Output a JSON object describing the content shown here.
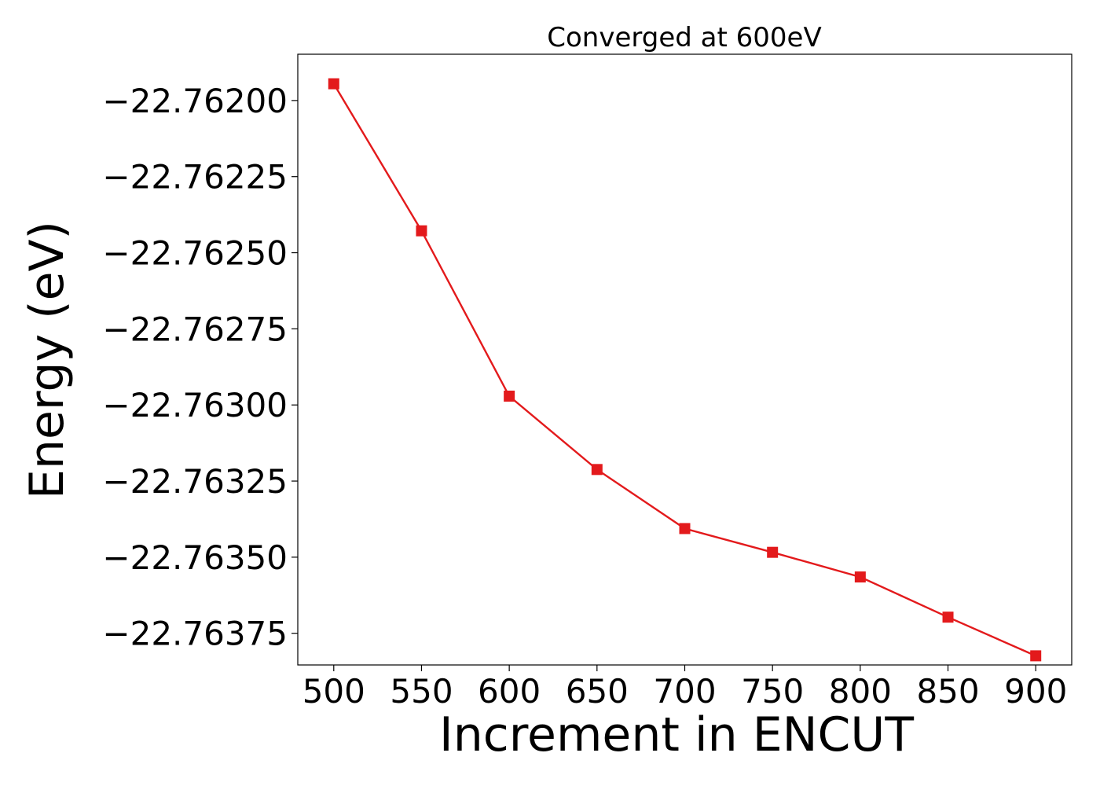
{
  "chart_data": {
    "type": "line",
    "title": "Converged at 600eV",
    "xlabel": "Increment in ENCUT",
    "ylabel": "Energy (eV)",
    "x": [
      500,
      550,
      600,
      650,
      700,
      750,
      800,
      850,
      900
    ],
    "x_ticks": [
      "500",
      "550",
      "600",
      "650",
      "700",
      "750",
      "800",
      "850",
      "900"
    ],
    "y_ticks": [
      "−22.76200",
      "−22.76225",
      "−22.76250",
      "−22.76275",
      "−22.76300",
      "−22.76325",
      "−22.76350",
      "−22.76375"
    ],
    "y_tick_values": [
      -22.762,
      -22.76225,
      -22.7625,
      -22.76275,
      -22.763,
      -22.76325,
      -22.7635,
      -22.76375
    ],
    "xlim": [
      479.5,
      920.5
    ],
    "ylim": [
      -22.763854,
      -22.761848
    ],
    "grid": false,
    "series": [
      {
        "values": [
          -22.761945,
          -22.762428,
          -22.762971,
          -22.763212,
          -22.763406,
          -22.763484,
          -22.763565,
          -22.763697,
          -22.763824
        ],
        "color": "#e31a1c",
        "marker": "square"
      }
    ]
  }
}
